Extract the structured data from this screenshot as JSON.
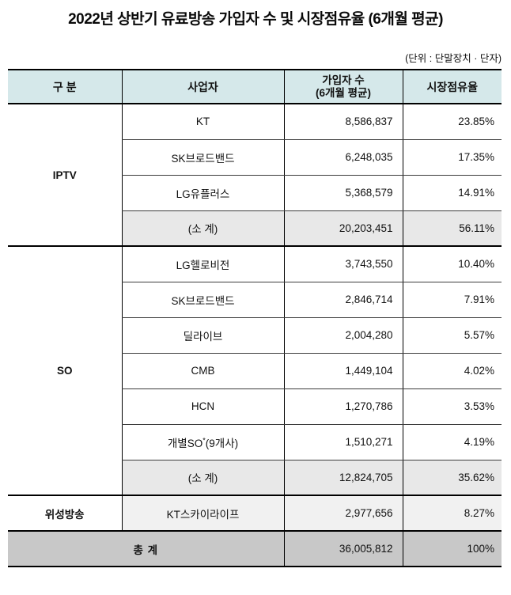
{
  "page": {
    "title": "2022년 상반기 유료방송 가입자 수 및 시장점유율 (6개월 평균)",
    "unit_note": "(단위 : 단말장치 · 단자)"
  },
  "colors": {
    "header_bg": "#d5e8ea",
    "subtotal_bg": "#e8e8e8",
    "satellite_row_bg": "#f1f1f1",
    "total_bg": "#c8c8c8",
    "border": "#000000"
  },
  "table": {
    "headers": {
      "category": "구 분",
      "operator": "사업자",
      "subscribers_line1": "가입자 수",
      "subscribers_line2": "(6개월 평균)",
      "share": "시장점유율"
    },
    "groups": [
      {
        "name": "IPTV",
        "rows": [
          {
            "operator": "KT",
            "subscribers": "8,586,837",
            "share": "23.85%"
          },
          {
            "operator": "SK브로드밴드",
            "subscribers": "6,248,035",
            "share": "17.35%"
          },
          {
            "operator": "LG유플러스",
            "subscribers": "5,368,579",
            "share": "14.91%"
          }
        ],
        "subtotal": {
          "label": "(소 계)",
          "subscribers": "20,203,451",
          "share": "56.11%"
        }
      },
      {
        "name": "SO",
        "rows": [
          {
            "operator": "LG헬로비전",
            "subscribers": "3,743,550",
            "share": "10.40%"
          },
          {
            "operator": "SK브로드밴드",
            "subscribers": "2,846,714",
            "share": "7.91%"
          },
          {
            "operator": "딜라이브",
            "subscribers": "2,004,280",
            "share": "5.57%"
          },
          {
            "operator": "CMB",
            "subscribers": "1,449,104",
            "share": "4.02%"
          },
          {
            "operator": "HCN",
            "subscribers": "1,270,786",
            "share": "3.53%"
          },
          {
            "operator": "개별SO",
            "operator_sup": "*",
            "operator_suffix": "(9개사)",
            "subscribers": "1,510,271",
            "share": "4.19%"
          }
        ],
        "subtotal": {
          "label": "(소 계)",
          "subscribers": "12,824,705",
          "share": "35.62%"
        }
      },
      {
        "name": "위성방송",
        "rows": [
          {
            "operator": "KT스카이라이프",
            "subscribers": "2,977,656",
            "share": "8.27%"
          }
        ]
      }
    ],
    "total": {
      "label": "총 계",
      "subscribers": "36,005,812",
      "share": "100%"
    }
  },
  "chart_data": {
    "type": "table",
    "title": "2022년 상반기 유료방송 가입자 수 및 시장점유율 (6개월 평균)",
    "unit": "단말장치 · 단자",
    "columns": [
      "구 분",
      "사업자",
      "가입자 수 (6개월 평균)",
      "시장점유율"
    ],
    "rows": [
      [
        "IPTV",
        "KT",
        8586837,
        "23.85%"
      ],
      [
        "IPTV",
        "SK브로드밴드",
        6248035,
        "17.35%"
      ],
      [
        "IPTV",
        "LG유플러스",
        5368579,
        "14.91%"
      ],
      [
        "IPTV",
        "(소 계)",
        20203451,
        "56.11%"
      ],
      [
        "SO",
        "LG헬로비전",
        3743550,
        "10.40%"
      ],
      [
        "SO",
        "SK브로드밴드",
        2846714,
        "7.91%"
      ],
      [
        "SO",
        "딜라이브",
        2004280,
        "5.57%"
      ],
      [
        "SO",
        "CMB",
        1449104,
        "4.02%"
      ],
      [
        "SO",
        "HCN",
        1270786,
        "3.53%"
      ],
      [
        "SO",
        "개별SO*(9개사)",
        1510271,
        "4.19%"
      ],
      [
        "SO",
        "(소 계)",
        12824705,
        "35.62%"
      ],
      [
        "위성방송",
        "KT스카이라이프",
        2977656,
        "8.27%"
      ],
      [
        "총 계",
        "",
        36005812,
        "100%"
      ]
    ]
  }
}
